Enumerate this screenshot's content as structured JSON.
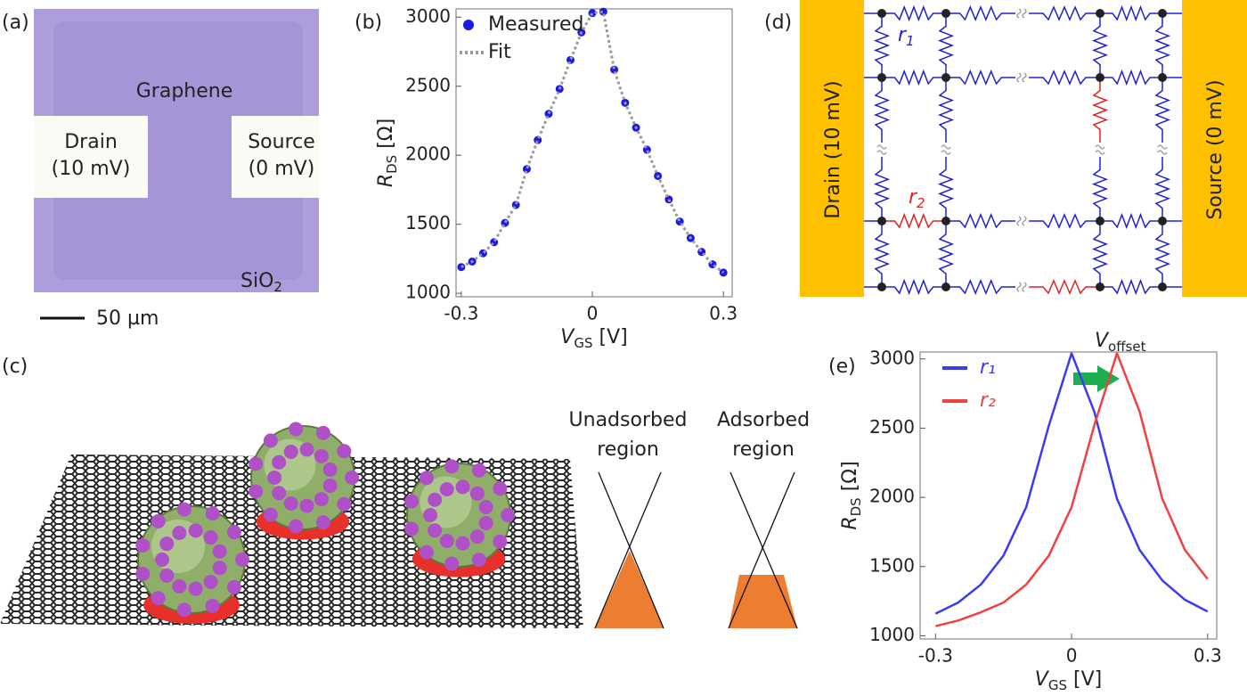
{
  "panels": {
    "a": {
      "label": "(a)",
      "graphene": "Graphene",
      "drain": "Drain",
      "drain_v": "(10 mV)",
      "source": "Source",
      "source_v": "(0 mV)",
      "substrate": "SiO",
      "substrate_sub": "2",
      "scale": "50 µm"
    },
    "b": {
      "label": "(b)"
    },
    "c": {
      "label": "(c)",
      "unadsorbed": [
        "Unadsorbed",
        "region"
      ],
      "adsorbed": [
        "Adsorbed",
        "region"
      ]
    },
    "d": {
      "label": "(d)",
      "drain": "Drain (10 mV)",
      "source": "Source (0 mV)",
      "r1": "r",
      "r1_sub": "1",
      "r2": "r",
      "r2_sub": "2"
    },
    "e": {
      "label": "(e)"
    }
  },
  "chart_data": [
    {
      "type": "scatter",
      "xlabel": [
        "V",
        "GS",
        " [V]"
      ],
      "ylabel": [
        "R",
        "DS",
        " [Ω]"
      ],
      "x": [
        -0.3,
        -0.275,
        -0.25,
        -0.225,
        -0.2,
        -0.175,
        -0.15,
        -0.125,
        -0.1,
        -0.075,
        -0.05,
        -0.025,
        0,
        0.025,
        0.05,
        0.075,
        0.1,
        0.125,
        0.15,
        0.175,
        0.2,
        0.225,
        0.25,
        0.275,
        0.3
      ],
      "series": [
        {
          "name": "Measured",
          "color": "#1a1ae6",
          "marker": "circle",
          "values": [
            1190,
            1230,
            1290,
            1370,
            1510,
            1640,
            1900,
            2110,
            2300,
            2480,
            2690,
            2890,
            3030,
            3040,
            2620,
            2380,
            2200,
            2040,
            1850,
            1680,
            1520,
            1400,
            1300,
            1210,
            1150
          ]
        },
        {
          "name": "Fit",
          "color": "#999999",
          "line": "dotted",
          "values": [
            1190,
            1230,
            1290,
            1370,
            1510,
            1640,
            1900,
            2110,
            2300,
            2480,
            2690,
            2890,
            3030,
            3040,
            2620,
            2380,
            2200,
            2040,
            1850,
            1680,
            1520,
            1400,
            1300,
            1210,
            1150
          ]
        }
      ],
      "xlim": [
        -0.312,
        0.32
      ],
      "ylim": [
        975,
        3060
      ],
      "xticks": [
        -0.3,
        0,
        0.3
      ],
      "yticks": [
        1000,
        1500,
        2000,
        2500,
        3000
      ],
      "legend": "upper left"
    },
    {
      "type": "line",
      "xlabel": [
        "V",
        "GS",
        " [V]"
      ],
      "ylabel": [
        "R",
        "DS",
        " [Ω]"
      ],
      "annotation": [
        "V",
        "offset"
      ],
      "x": [
        -0.3,
        -0.25,
        -0.2,
        -0.15,
        -0.1,
        -0.05,
        0,
        0.05,
        0.1,
        0.15,
        0.2,
        0.25,
        0.3
      ],
      "series": [
        {
          "name": "r₁",
          "color": "#3b3bf0",
          "values": [
            1160,
            1240,
            1370,
            1580,
            1930,
            2520,
            3040,
            2620,
            1990,
            1620,
            1400,
            1260,
            1175
          ]
        },
        {
          "name": "r₂",
          "color": "#f04040",
          "values": [
            1070,
            1110,
            1170,
            1240,
            1370,
            1580,
            1930,
            2520,
            3040,
            2620,
            1990,
            1620,
            1410
          ]
        }
      ],
      "xlim": [
        -0.334,
        0.32
      ],
      "ylim": [
        977,
        3050
      ],
      "xticks": [
        -0.3,
        0,
        0.3
      ],
      "yticks": [
        1000,
        1500,
        2000,
        2500,
        3000
      ],
      "legend": "upper left"
    }
  ]
}
